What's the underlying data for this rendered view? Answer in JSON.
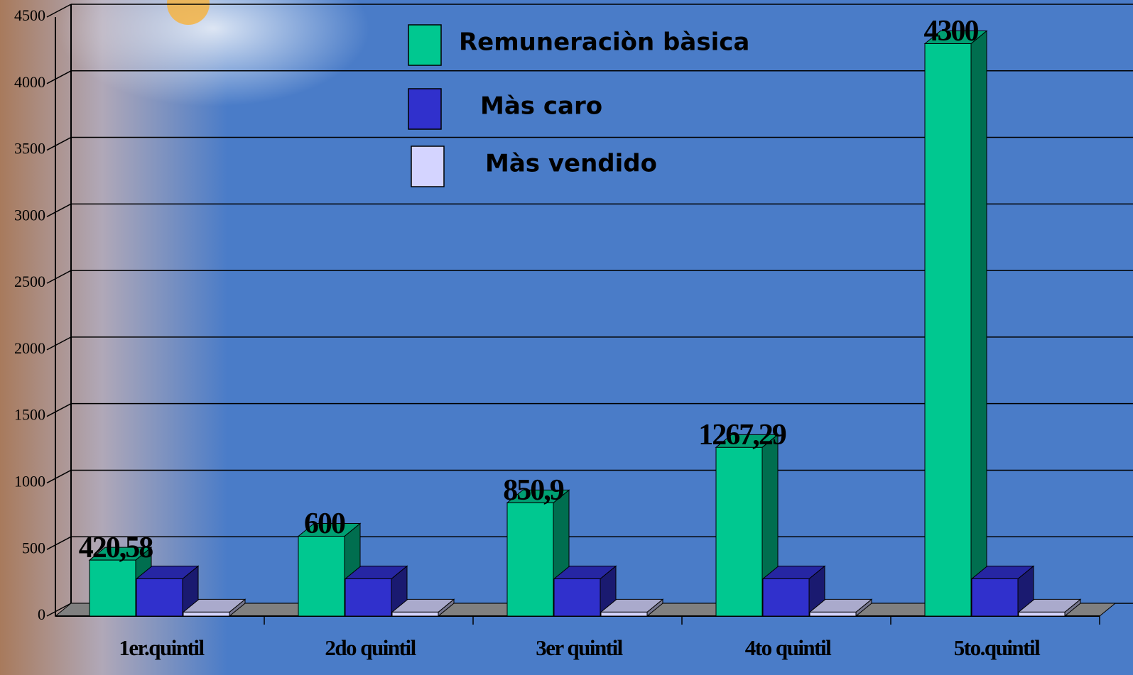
{
  "chart_data": {
    "type": "bar3d",
    "categories": [
      "1er.quintil",
      "2do quintil",
      "3er quintil",
      "4to quintil",
      "5to.quintil"
    ],
    "series": [
      {
        "name": "Remuneraciòn bàsica",
        "color": "#00c890",
        "values": [
          420.58,
          600,
          850.9,
          1267.29,
          4300
        ],
        "value_labels": [
          "420,58",
          "600",
          "850,9",
          "1267,29",
          "4300"
        ]
      },
      {
        "name": "Màs caro",
        "color": "#3030cc",
        "values": [
          280,
          280,
          280,
          280,
          280
        ]
      },
      {
        "name": "Màs vendido",
        "color": "#d4d4ff",
        "values": [
          30,
          30,
          30,
          30,
          30
        ]
      }
    ],
    "ylim": [
      0,
      4500
    ],
    "yticks": [
      0,
      500,
      1000,
      1500,
      2000,
      2500,
      3000,
      3500,
      4000,
      4500
    ],
    "grid": true
  }
}
